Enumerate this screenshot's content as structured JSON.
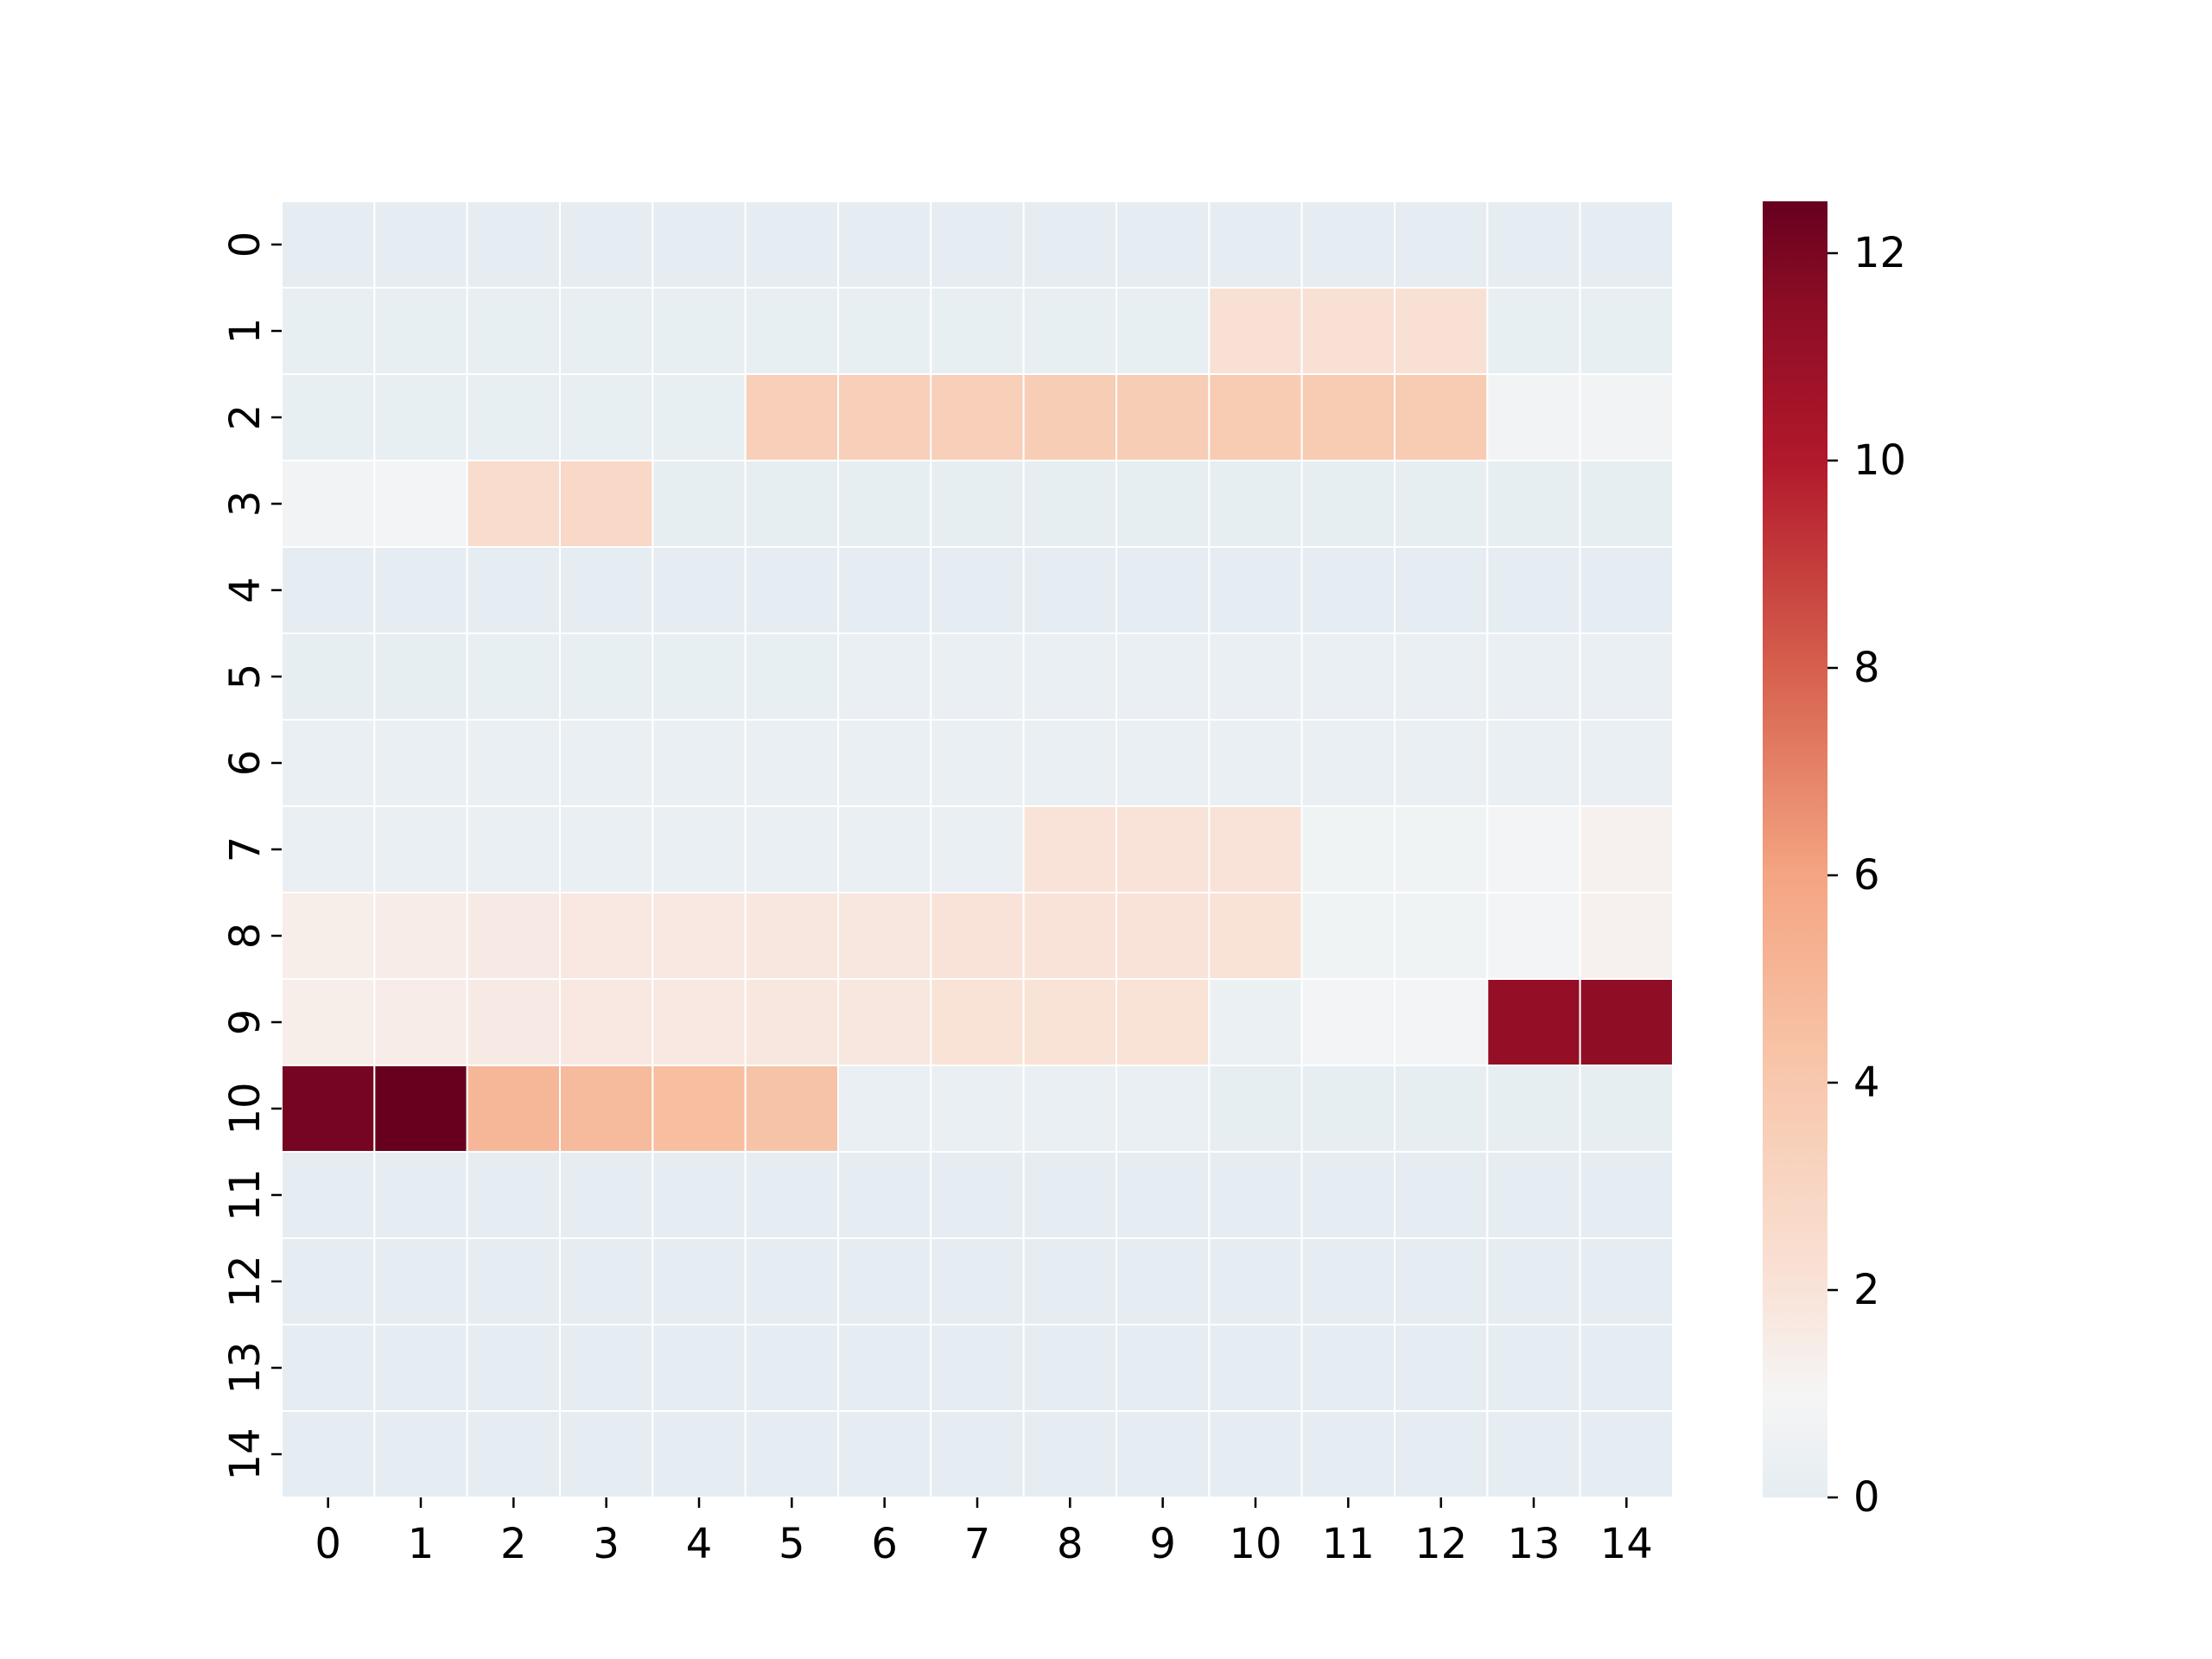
{
  "chart_data": {
    "type": "heatmap",
    "title": "",
    "xlabel": "",
    "ylabel": "",
    "x_ticks": [
      "0",
      "1",
      "2",
      "3",
      "4",
      "5",
      "6",
      "7",
      "8",
      "9",
      "10",
      "11",
      "12",
      "13",
      "14"
    ],
    "y_ticks": [
      "0",
      "1",
      "2",
      "3",
      "4",
      "5",
      "6",
      "7",
      "8",
      "9",
      "10",
      "11",
      "12",
      "13",
      "14"
    ],
    "colormap": "RdBu_r",
    "color_range": [
      0,
      12.5
    ],
    "colorbar_ticks": [
      0,
      2,
      4,
      6,
      8,
      10,
      12
    ],
    "colorbar_labels": [
      "0",
      "2",
      "4",
      "6",
      "8",
      "10",
      "12"
    ],
    "grid_lines": true,
    "grid_line_color": "#ffffff",
    "values": [
      [
        0.05,
        0.05,
        0.05,
        0.05,
        0.05,
        0.05,
        0.05,
        0.05,
        0.05,
        0.05,
        0.05,
        0.05,
        0.05,
        0.05,
        0.05
      ],
      [
        0.2,
        0.2,
        0.2,
        0.2,
        0.2,
        0.2,
        0.2,
        0.2,
        0.2,
        0.2,
        2.2,
        2.2,
        2.2,
        0.2,
        0.2
      ],
      [
        0.2,
        0.2,
        0.2,
        0.2,
        0.2,
        3.5,
        3.5,
        3.5,
        3.6,
        3.6,
        3.7,
        3.7,
        3.7,
        0.8,
        0.8
      ],
      [
        0.8,
        0.9,
        2.5,
        2.8,
        0.1,
        0.1,
        0.1,
        0.1,
        0.1,
        0.1,
        0.1,
        0.1,
        0.1,
        0.1,
        0.1
      ],
      [
        0.05,
        0.05,
        0.05,
        0.05,
        0.05,
        0.05,
        0.05,
        0.05,
        0.05,
        0.05,
        0.05,
        0.05,
        0.05,
        0.05,
        0.05
      ],
      [
        0.1,
        0.1,
        0.2,
        0.2,
        0.2,
        0.2,
        0.3,
        0.3,
        0.3,
        0.3,
        0.3,
        0.3,
        0.3,
        0.3,
        0.3
      ],
      [
        0.3,
        0.3,
        0.3,
        0.3,
        0.3,
        0.3,
        0.3,
        0.3,
        0.3,
        0.3,
        0.3,
        0.3,
        0.3,
        0.3,
        0.3
      ],
      [
        0.3,
        0.3,
        0.3,
        0.3,
        0.3,
        0.3,
        0.3,
        0.3,
        2.0,
        2.0,
        2.0,
        0.7,
        0.7,
        0.9,
        1.2
      ],
      [
        1.4,
        1.5,
        1.6,
        1.7,
        1.7,
        1.8,
        1.8,
        2.0,
        2.0,
        2.0,
        2.1,
        0.7,
        0.7,
        0.9,
        1.2
      ],
      [
        1.4,
        1.5,
        1.6,
        1.7,
        1.7,
        1.8,
        1.8,
        2.1,
        2.1,
        2.1,
        0.4,
        0.9,
        0.9,
        11.2,
        11.4
      ],
      [
        12.1,
        12.5,
        5.0,
        4.8,
        4.6,
        4.3,
        0.3,
        0.3,
        0.3,
        0.3,
        0.1,
        0.1,
        0.1,
        0.1,
        0.1
      ],
      [
        0.05,
        0.05,
        0.05,
        0.05,
        0.05,
        0.05,
        0.05,
        0.05,
        0.05,
        0.05,
        0.05,
        0.05,
        0.05,
        0.05,
        0.05
      ],
      [
        0.05,
        0.05,
        0.05,
        0.05,
        0.05,
        0.05,
        0.05,
        0.05,
        0.05,
        0.05,
        0.05,
        0.05,
        0.05,
        0.05,
        0.05
      ],
      [
        0.05,
        0.05,
        0.05,
        0.05,
        0.05,
        0.05,
        0.05,
        0.05,
        0.05,
        0.05,
        0.05,
        0.05,
        0.05,
        0.05,
        0.05
      ],
      [
        0.05,
        0.05,
        0.05,
        0.05,
        0.05,
        0.05,
        0.05,
        0.05,
        0.05,
        0.05,
        0.05,
        0.05,
        0.05,
        0.05,
        0.05
      ]
    ]
  }
}
